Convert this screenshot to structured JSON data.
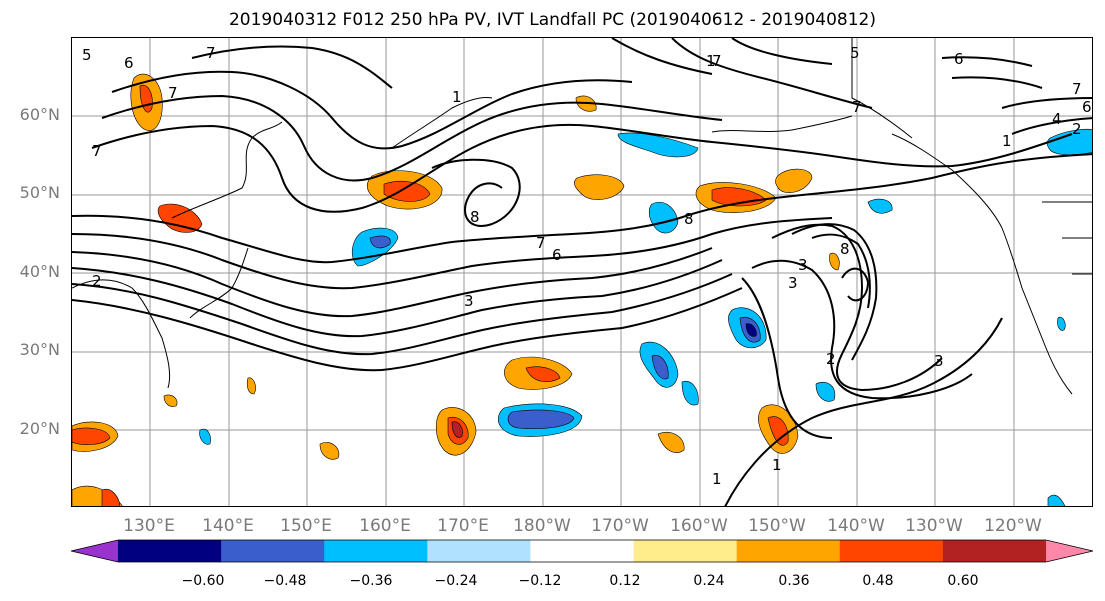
{
  "title": "2019040312 F012 250 hPa PV, IVT Landfall PC (2019040612 - 2019040812)",
  "lat_labels": [
    "60°N",
    "50°N",
    "40°N",
    "30°N",
    "20°N"
  ],
  "lon_labels": [
    "130°E",
    "140°E",
    "150°E",
    "160°E",
    "170°E",
    "180°W",
    "170°W",
    "160°W",
    "150°W",
    "140°W",
    "130°W",
    "120°W"
  ],
  "colorbar": {
    "ticks": [
      "−0.60",
      "−0.48",
      "−0.36",
      "−0.24",
      "−0.12",
      "0.12",
      "0.24",
      "0.36",
      "0.48",
      "0.60"
    ],
    "colors": [
      "#9a32cd",
      "#000080",
      "#3a5fcd",
      "#00bfff",
      "#b0e2ff",
      "#ffffff",
      "#ffec8b",
      "#ffa500",
      "#ff4500",
      "#b22222",
      "#ff88aa"
    ]
  },
  "contour_labels": [
    "7",
    "8",
    "5",
    "6",
    "7",
    "7",
    "1",
    "7",
    "5",
    "6",
    "7",
    "2",
    "1",
    "8",
    "1",
    "6",
    "7",
    "6",
    "3",
    "2",
    "3",
    "8",
    "2",
    "3",
    "1",
    "1",
    "7",
    "4",
    "3"
  ]
}
